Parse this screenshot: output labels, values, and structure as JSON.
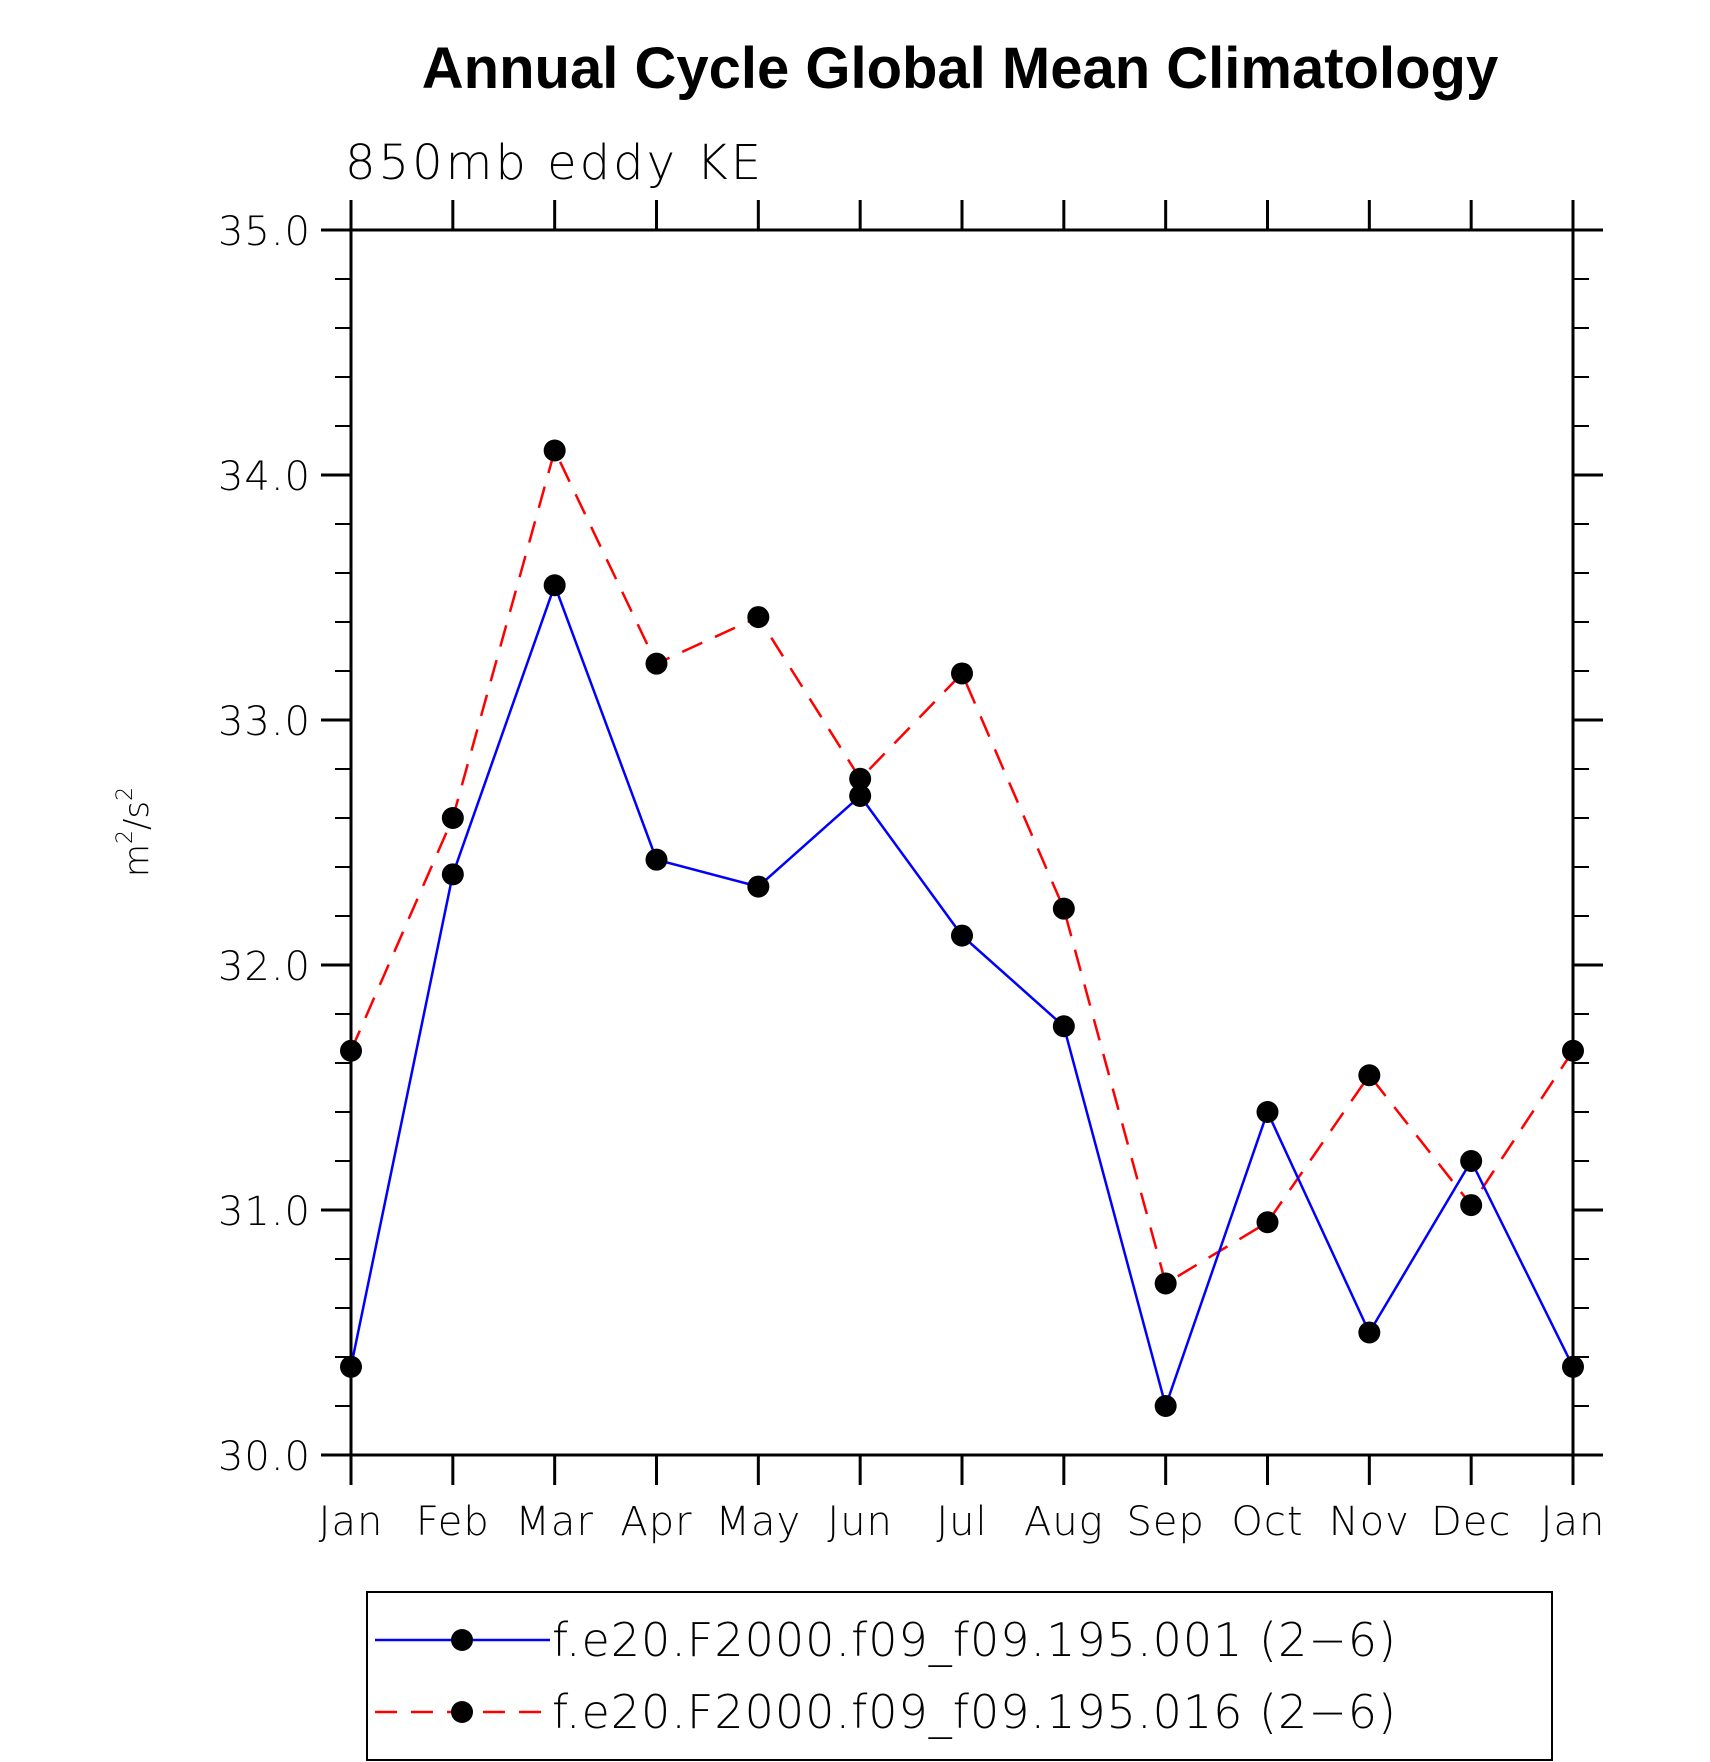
{
  "chart_data": {
    "type": "line",
    "title": "Annual Cycle Global Mean Climatology",
    "subtitle": "850mb eddy KE",
    "ylabel_base1": "m",
    "ylabel_sup1": "2",
    "ylabel_mid": "/s",
    "ylabel_sup2": "2",
    "xlabel": "",
    "categories": [
      "Jan",
      "Feb",
      "Mar",
      "Apr",
      "May",
      "Jun",
      "Jul",
      "Aug",
      "Sep",
      "Oct",
      "Nov",
      "Dec",
      "Jan"
    ],
    "ylim": [
      30.0,
      35.0
    ],
    "yticks": [
      30.0,
      31.0,
      32.0,
      33.0,
      34.0,
      35.0
    ],
    "ytick_labels": [
      "30.0",
      "31.0",
      "32.0",
      "33.0",
      "34.0",
      "35.0"
    ],
    "series": [
      {
        "name": "f.e20.F2000.f09_f09.195.001 (2−6)",
        "color": "#0000ff",
        "dash": "solid",
        "values": [
          30.36,
          32.37,
          33.55,
          32.43,
          32.32,
          32.69,
          32.12,
          31.75,
          30.2,
          31.4,
          30.5,
          31.2,
          30.36
        ]
      },
      {
        "name": "f.e20.F2000.f09_f09.195.016 (2−6)",
        "color": "#ff0000",
        "dash": "dashed",
        "values": [
          31.65,
          32.6,
          34.1,
          33.23,
          33.42,
          32.76,
          33.19,
          32.23,
          30.7,
          30.95,
          31.55,
          31.02,
          31.65
        ]
      }
    ],
    "marker_color": "#000000",
    "legend_position": "bottom"
  }
}
